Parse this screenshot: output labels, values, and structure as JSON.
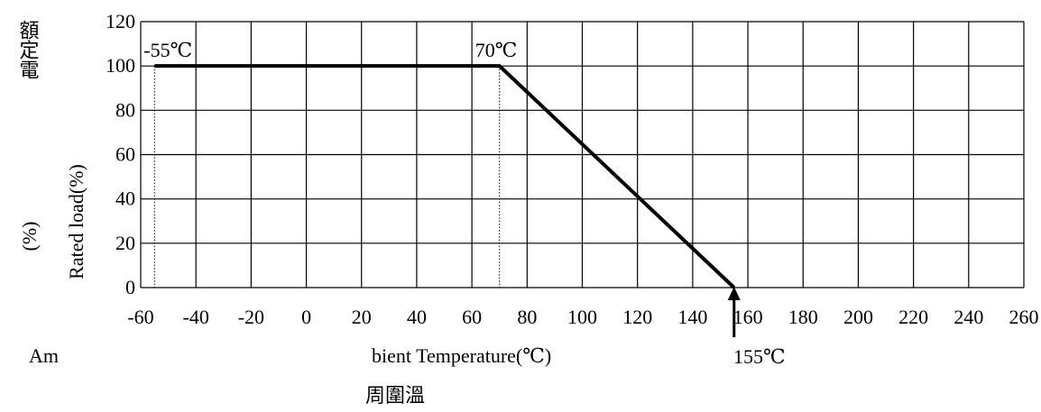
{
  "chart_data": {
    "type": "line",
    "title": "",
    "xlabel": "bient Temperature(℃)",
    "xlabel_prefix": "Am",
    "xlabel_cn": "周圍溫",
    "ylabel": "Rated load(%)",
    "ylabel_cn": "額定電",
    "ylabel_unit": "(%)",
    "xlim": [
      -60,
      260
    ],
    "ylim": [
      0,
      120
    ],
    "x_ticks": [
      "-60",
      "-40",
      "-20",
      "0",
      "20",
      "40",
      "60",
      "80",
      "100",
      "120",
      "140",
      "160",
      "180",
      "200",
      "220",
      "240",
      "260"
    ],
    "y_ticks": [
      "0",
      "20",
      "40",
      "60",
      "80",
      "100",
      "120"
    ],
    "grid": true,
    "series": [
      {
        "x": [
          -55,
          70,
          155
        ],
        "y": [
          100,
          100,
          0
        ]
      }
    ],
    "annotations": [
      {
        "text": "-55℃",
        "x": -55,
        "y": 100
      },
      {
        "text": "70℃",
        "x": 70,
        "y": 100
      },
      {
        "text": "155℃",
        "x": 155,
        "y": 0
      }
    ]
  }
}
